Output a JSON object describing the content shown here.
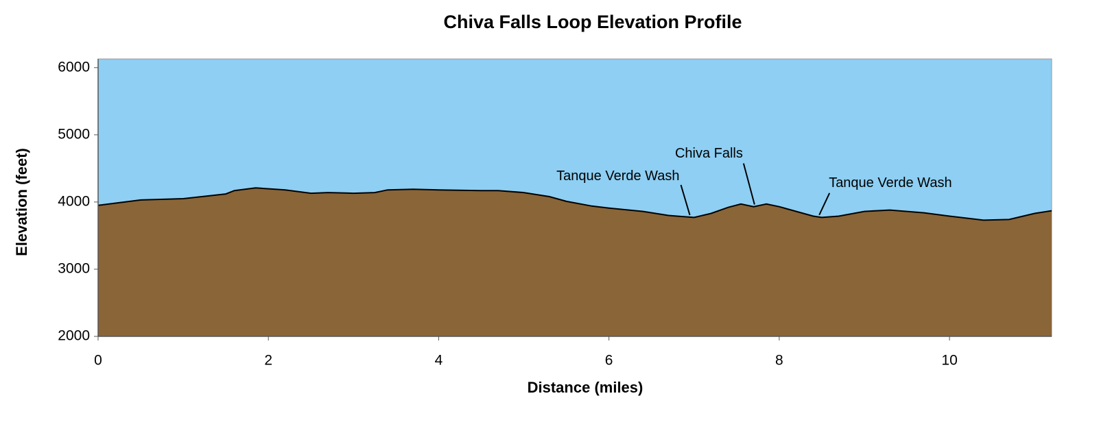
{
  "chart_data": {
    "type": "area",
    "title": "Chiva Falls Loop Elevation Profile",
    "x_label": "Distance (miles)",
    "y_label": "Elevation (feet)",
    "x": [
      0,
      0.5,
      1.0,
      1.5,
      1.6,
      1.85,
      2.2,
      2.5,
      2.7,
      3.0,
      3.25,
      3.4,
      3.7,
      4.0,
      4.5,
      4.7,
      5.0,
      5.3,
      5.5,
      5.8,
      6.0,
      6.4,
      6.7,
      6.8,
      7.0,
      7.2,
      7.4,
      7.55,
      7.7,
      7.85,
      8.0,
      8.2,
      8.4,
      8.5,
      8.7,
      9.0,
      9.3,
      9.7,
      10.0,
      10.4,
      10.7,
      11.0,
      11.2
    ],
    "values": [
      3950,
      4030,
      4050,
      4120,
      4170,
      4210,
      4180,
      4130,
      4140,
      4130,
      4140,
      4180,
      4190,
      4180,
      4170,
      4170,
      4140,
      4080,
      4010,
      3940,
      3910,
      3860,
      3800,
      3790,
      3770,
      3830,
      3920,
      3970,
      3930,
      3970,
      3930,
      3860,
      3790,
      3770,
      3790,
      3860,
      3880,
      3840,
      3790,
      3730,
      3740,
      3830,
      3870
    ],
    "color": "#8a6537",
    "background_color": "#8ecff3",
    "xlim": [
      0,
      11.2
    ],
    "ylim": [
      2000,
      6130
    ],
    "xticks": [
      0,
      2,
      4,
      6,
      8,
      10
    ],
    "yticks": [
      2000,
      3000,
      4000,
      5000,
      6000
    ],
    "annotations": [
      {
        "label": "Tanque Verde Wash",
        "x": 6.95
      },
      {
        "label": "Chiva Falls",
        "x": 7.71
      },
      {
        "label": "Tanque Verde Wash",
        "x": 8.47
      }
    ]
  }
}
